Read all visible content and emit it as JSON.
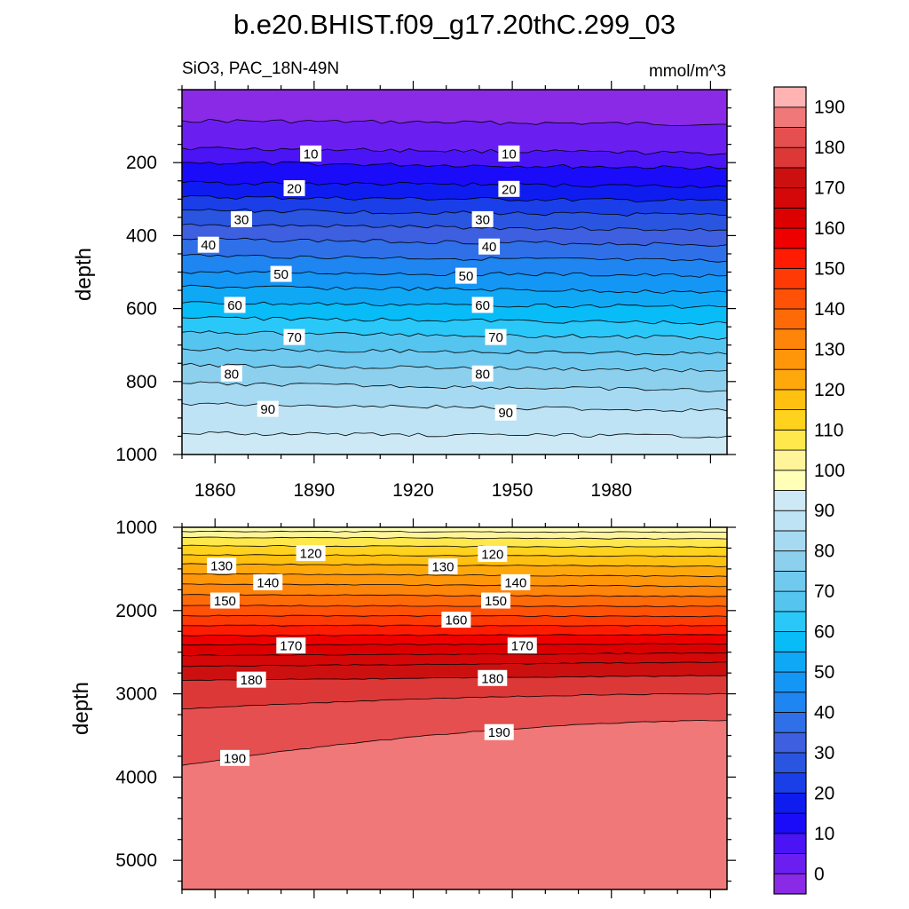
{
  "chart_data": {
    "type": "contour",
    "title": "b.e20.BHIST.f09_g17.20thC.299_03",
    "left_subtitle": "SiO3, PAC_18N-49N",
    "right_subtitle": "mmol/m^3",
    "xlabel": "",
    "ylabel": "depth",
    "x_range": [
      1850,
      2015
    ],
    "x_ticks": [
      1860,
      1890,
      1920,
      1950,
      1980
    ],
    "x_tick_labels": [
      "1860",
      "1890",
      "1920",
      "1950",
      "1980"
    ],
    "panels": [
      {
        "name": "upper",
        "ylim": [
          0,
          1000
        ],
        "y_ticks": [
          200,
          400,
          600,
          800,
          1000
        ],
        "y_tick_labels": [
          "200",
          "400",
          "600",
          "800",
          "1000"
        ],
        "y_inverted": true,
        "contour_depths_start": [
          {
            "level": 5,
            "depth": 85
          },
          {
            "level": 10,
            "depth": 160
          },
          {
            "level": 15,
            "depth": 200
          },
          {
            "level": 20,
            "depth": 255
          },
          {
            "level": 25,
            "depth": 295
          },
          {
            "level": 30,
            "depth": 330
          },
          {
            "level": 35,
            "depth": 370
          },
          {
            "level": 40,
            "depth": 410
          },
          {
            "level": 45,
            "depth": 455
          },
          {
            "level": 50,
            "depth": 500
          },
          {
            "level": 55,
            "depth": 540
          },
          {
            "level": 60,
            "depth": 585
          },
          {
            "level": 65,
            "depth": 625
          },
          {
            "level": 70,
            "depth": 665
          },
          {
            "level": 75,
            "depth": 710
          },
          {
            "level": 80,
            "depth": 755
          },
          {
            "level": 85,
            "depth": 805
          },
          {
            "level": 90,
            "depth": 860
          },
          {
            "level": 95,
            "depth": 942
          }
        ],
        "contour_depths_end": [
          {
            "level": 5,
            "depth": 95
          },
          {
            "level": 10,
            "depth": 175
          },
          {
            "level": 15,
            "depth": 215
          },
          {
            "level": 20,
            "depth": 265
          },
          {
            "level": 25,
            "depth": 305
          },
          {
            "level": 30,
            "depth": 345
          },
          {
            "level": 35,
            "depth": 385
          },
          {
            "level": 40,
            "depth": 425
          },
          {
            "level": 45,
            "depth": 470
          },
          {
            "level": 50,
            "depth": 510
          },
          {
            "level": 55,
            "depth": 555
          },
          {
            "level": 60,
            "depth": 595
          },
          {
            "level": 65,
            "depth": 640
          },
          {
            "level": 70,
            "depth": 680
          },
          {
            "level": 75,
            "depth": 725
          },
          {
            "level": 80,
            "depth": 770
          },
          {
            "level": 85,
            "depth": 825
          },
          {
            "level": 90,
            "depth": 880
          },
          {
            "level": 95,
            "depth": 950
          }
        ],
        "contour_labels": [
          {
            "text": "10",
            "year": 1889,
            "depth": 175
          },
          {
            "text": "10",
            "year": 1949,
            "depth": 175
          },
          {
            "text": "20",
            "year": 1884,
            "depth": 270
          },
          {
            "text": "20",
            "year": 1949,
            "depth": 272
          },
          {
            "text": "30",
            "year": 1868,
            "depth": 355
          },
          {
            "text": "30",
            "year": 1941,
            "depth": 355
          },
          {
            "text": "40",
            "year": 1858,
            "depth": 425
          },
          {
            "text": "40",
            "year": 1943,
            "depth": 430
          },
          {
            "text": "50",
            "year": 1880,
            "depth": 505
          },
          {
            "text": "50",
            "year": 1936,
            "depth": 510
          },
          {
            "text": "60",
            "year": 1866,
            "depth": 590
          },
          {
            "text": "60",
            "year": 1941,
            "depth": 590
          },
          {
            "text": "70",
            "year": 1884,
            "depth": 678
          },
          {
            "text": "70",
            "year": 1945,
            "depth": 678
          },
          {
            "text": "80",
            "year": 1865,
            "depth": 778
          },
          {
            "text": "80",
            "year": 1941,
            "depth": 778
          },
          {
            "text": "90",
            "year": 1876,
            "depth": 875
          },
          {
            "text": "90",
            "year": 1948,
            "depth": 885
          }
        ]
      },
      {
        "name": "lower",
        "ylim": [
          1000,
          5350
        ],
        "y_ticks": [
          1000,
          2000,
          3000,
          4000,
          5000
        ],
        "y_tick_labels": [
          "1000",
          "2000",
          "3000",
          "4000",
          "5000"
        ],
        "y_inverted": true,
        "contour_depths_start": [
          {
            "level": 105,
            "depth": 1050
          },
          {
            "level": 110,
            "depth": 1120
          },
          {
            "level": 115,
            "depth": 1220
          },
          {
            "level": 120,
            "depth": 1330
          },
          {
            "level": 125,
            "depth": 1440
          },
          {
            "level": 130,
            "depth": 1560
          },
          {
            "level": 135,
            "depth": 1680
          },
          {
            "level": 140,
            "depth": 1810
          },
          {
            "level": 145,
            "depth": 1940
          },
          {
            "level": 150,
            "depth": 2060
          },
          {
            "level": 155,
            "depth": 2180
          },
          {
            "level": 160,
            "depth": 2300
          },
          {
            "level": 165,
            "depth": 2410
          },
          {
            "level": 170,
            "depth": 2540
          },
          {
            "level": 175,
            "depth": 2670
          },
          {
            "level": 180,
            "depth": 2840
          },
          {
            "level": 185,
            "depth": 3180
          },
          {
            "level": 190,
            "depth": 3860
          }
        ],
        "contour_depths_end": [
          {
            "level": 105,
            "depth": 1060
          },
          {
            "level": 110,
            "depth": 1140
          },
          {
            "level": 115,
            "depth": 1240
          },
          {
            "level": 120,
            "depth": 1350
          },
          {
            "level": 125,
            "depth": 1470
          },
          {
            "level": 130,
            "depth": 1590
          },
          {
            "level": 135,
            "depth": 1710
          },
          {
            "level": 140,
            "depth": 1830
          },
          {
            "level": 145,
            "depth": 1950
          },
          {
            "level": 150,
            "depth": 2070
          },
          {
            "level": 155,
            "depth": 2180
          },
          {
            "level": 160,
            "depth": 2290
          },
          {
            "level": 165,
            "depth": 2400
          },
          {
            "level": 170,
            "depth": 2510
          },
          {
            "level": 175,
            "depth": 2620
          },
          {
            "level": 180,
            "depth": 2780
          },
          {
            "level": 185,
            "depth": 3000
          },
          {
            "level": 190,
            "depth": 3320
          }
        ],
        "contour_labels": [
          {
            "text": "120",
            "year": 1889,
            "depth": 1310
          },
          {
            "text": "120",
            "year": 1944,
            "depth": 1320
          },
          {
            "text": "130",
            "year": 1862,
            "depth": 1460
          },
          {
            "text": "130",
            "year": 1929,
            "depth": 1470
          },
          {
            "text": "140",
            "year": 1876,
            "depth": 1660
          },
          {
            "text": "140",
            "year": 1951,
            "depth": 1660
          },
          {
            "text": "150",
            "year": 1863,
            "depth": 1880
          },
          {
            "text": "150",
            "year": 1945,
            "depth": 1880
          },
          {
            "text": "160",
            "year": 1933,
            "depth": 2110
          },
          {
            "text": "170",
            "year": 1883,
            "depth": 2420
          },
          {
            "text": "170",
            "year": 1953,
            "depth": 2420
          },
          {
            "text": "180",
            "year": 1871,
            "depth": 2830
          },
          {
            "text": "180",
            "year": 1944,
            "depth": 2810
          },
          {
            "text": "190",
            "year": 1866,
            "depth": 3770
          },
          {
            "text": "190",
            "year": 1946,
            "depth": 3460
          }
        ]
      }
    ],
    "colorbar": {
      "tick_labels": [
        "0",
        "10",
        "20",
        "30",
        "40",
        "50",
        "60",
        "70",
        "80",
        "90",
        "100",
        "110",
        "120",
        "130",
        "140",
        "150",
        "160",
        "170",
        "180",
        "190"
      ],
      "colors": [
        "#8a2ae6",
        "#6a1ff0",
        "#4a14f5",
        "#1a0cf8",
        "#0f1cf0",
        "#1a3ee8",
        "#2a55e0",
        "#3d5fe0",
        "#2f70e8",
        "#1f85f0",
        "#1496f5",
        "#0fa8f5",
        "#08bcf8",
        "#2ac8f8",
        "#55c5f0",
        "#70c9ef",
        "#8dd0ee",
        "#a6daf2",
        "#bde3f4",
        "#cde9f6",
        "#ffffb8",
        "#fff49a",
        "#ffe84c",
        "#ffd21e",
        "#ffc010",
        "#ffa80c",
        "#ff960a",
        "#ff840a",
        "#ff6a08",
        "#ff5206",
        "#ff3a04",
        "#ff1c02",
        "#ee0000",
        "#dd0000",
        "#d40808",
        "#cc1010",
        "#dd3838",
        "#e54f4f",
        "#f07878",
        "#ffb3b3"
      ]
    }
  }
}
